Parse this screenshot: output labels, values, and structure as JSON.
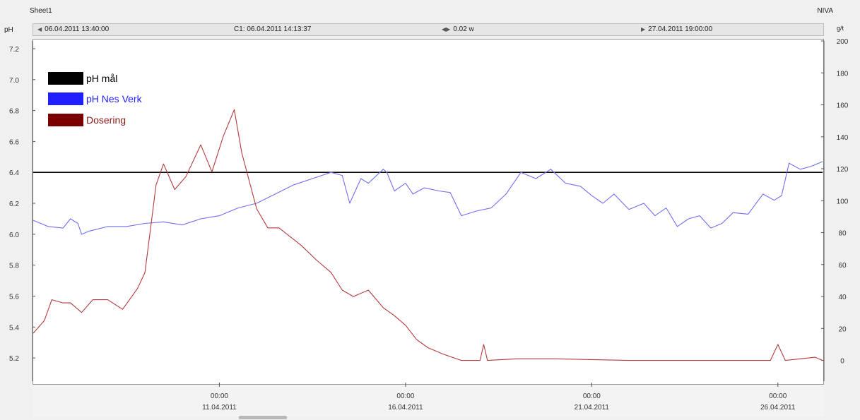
{
  "header": {
    "sheet_name": "Sheet1",
    "app_name": "NIVA",
    "left_unit": "pH",
    "right_unit": "g/t"
  },
  "toolbar": {
    "start_time": "06.04.2011 13:40:00",
    "cursor_label": "C1: 06.04.2011 14:13:37",
    "zoom_value": "0.02 w",
    "end_time": "27.04.2011 19:00:00"
  },
  "chart_data": {
    "type": "line",
    "title": "",
    "x_axis": {
      "ticks": [
        {
          "x": 5.0,
          "time": "00:00",
          "date": "11.04.2011"
        },
        {
          "x": 10.0,
          "time": "00:00",
          "date": "16.04.2011"
        },
        {
          "x": 15.0,
          "time": "00:00",
          "date": "21.04.2011"
        },
        {
          "x": 20.0,
          "time": "00:00",
          "date": "26.04.2011"
        }
      ],
      "range_days_from_start": [
        0,
        21.2
      ]
    },
    "y_left": {
      "label": "pH",
      "ticks": [
        "7.2",
        "7.0",
        "6.8",
        "6.6",
        "6.4",
        "6.2",
        "6.0",
        "5.8",
        "5.6",
        "5.4",
        "5.2"
      ],
      "range": [
        5.05,
        7.25
      ]
    },
    "y_right": {
      "label": "g/t",
      "ticks": [
        "200",
        "180",
        "160",
        "140",
        "120",
        "100",
        "80",
        "60",
        "40",
        "20",
        "0"
      ],
      "range": [
        -13,
        200
      ]
    },
    "legend_position": "top-left",
    "series": [
      {
        "name": "pH mål",
        "color": "#000000",
        "axis": "left",
        "points": [
          [
            0,
            6.4
          ],
          [
            21.2,
            6.4
          ]
        ]
      },
      {
        "name": "pH Nes Verk",
        "color": "#6f6ff0",
        "axis": "left",
        "points": [
          [
            0,
            6.09
          ],
          [
            0.4,
            6.05
          ],
          [
            0.8,
            6.04
          ],
          [
            1.0,
            6.1
          ],
          [
            1.2,
            6.07
          ],
          [
            1.3,
            6.0
          ],
          [
            1.5,
            6.02
          ],
          [
            2.0,
            6.05
          ],
          [
            2.5,
            6.05
          ],
          [
            3.0,
            6.07
          ],
          [
            3.5,
            6.08
          ],
          [
            4.0,
            6.06
          ],
          [
            4.5,
            6.1
          ],
          [
            5.0,
            6.12
          ],
          [
            5.5,
            6.17
          ],
          [
            6.0,
            6.2
          ],
          [
            6.5,
            6.26
          ],
          [
            7.0,
            6.32
          ],
          [
            7.5,
            6.36
          ],
          [
            8.0,
            6.4
          ],
          [
            8.3,
            6.38
          ],
          [
            8.5,
            6.2
          ],
          [
            8.8,
            6.36
          ],
          [
            9.0,
            6.33
          ],
          [
            9.4,
            6.42
          ],
          [
            9.5,
            6.4
          ],
          [
            9.7,
            6.28
          ],
          [
            10.0,
            6.33
          ],
          [
            10.2,
            6.26
          ],
          [
            10.5,
            6.3
          ],
          [
            10.9,
            6.28
          ],
          [
            11.2,
            6.27
          ],
          [
            11.5,
            6.12
          ],
          [
            11.9,
            6.15
          ],
          [
            12.3,
            6.17
          ],
          [
            12.7,
            6.26
          ],
          [
            13.1,
            6.4
          ],
          [
            13.5,
            6.36
          ],
          [
            13.9,
            6.42
          ],
          [
            14.3,
            6.33
          ],
          [
            14.7,
            6.31
          ],
          [
            15.0,
            6.25
          ],
          [
            15.3,
            6.2
          ],
          [
            15.6,
            6.26
          ],
          [
            16.0,
            6.16
          ],
          [
            16.4,
            6.2
          ],
          [
            16.7,
            6.12
          ],
          [
            17.0,
            6.17
          ],
          [
            17.3,
            6.05
          ],
          [
            17.6,
            6.1
          ],
          [
            17.9,
            6.12
          ],
          [
            18.2,
            6.04
          ],
          [
            18.5,
            6.07
          ],
          [
            18.8,
            6.14
          ],
          [
            19.2,
            6.13
          ],
          [
            19.6,
            6.26
          ],
          [
            19.9,
            6.22
          ],
          [
            20.1,
            6.25
          ],
          [
            20.3,
            6.46
          ],
          [
            20.6,
            6.42
          ],
          [
            20.9,
            6.44
          ],
          [
            21.2,
            6.47
          ]
        ]
      },
      {
        "name": "Dosering",
        "color": "#b23a3a",
        "axis": "right",
        "points": [
          [
            0,
            17
          ],
          [
            0.3,
            25
          ],
          [
            0.5,
            38
          ],
          [
            0.8,
            36
          ],
          [
            1.0,
            36
          ],
          [
            1.3,
            30
          ],
          [
            1.6,
            38
          ],
          [
            2.0,
            38
          ],
          [
            2.4,
            32
          ],
          [
            2.8,
            45
          ],
          [
            3.0,
            55
          ],
          [
            3.3,
            110
          ],
          [
            3.5,
            123
          ],
          [
            3.8,
            107
          ],
          [
            4.1,
            115
          ],
          [
            4.5,
            135
          ],
          [
            4.8,
            118
          ],
          [
            5.1,
            140
          ],
          [
            5.4,
            157
          ],
          [
            5.6,
            130
          ],
          [
            6.0,
            95
          ],
          [
            6.3,
            83
          ],
          [
            6.6,
            83
          ],
          [
            7.2,
            72
          ],
          [
            7.6,
            63
          ],
          [
            8.0,
            55
          ],
          [
            8.3,
            44
          ],
          [
            8.6,
            40
          ],
          [
            9.0,
            44
          ],
          [
            9.4,
            33
          ],
          [
            9.7,
            28
          ],
          [
            10.0,
            22
          ],
          [
            10.3,
            13
          ],
          [
            10.6,
            8
          ],
          [
            11.0,
            4
          ],
          [
            11.5,
            0
          ],
          [
            12.0,
            0
          ],
          [
            12.1,
            10
          ],
          [
            12.2,
            0
          ],
          [
            13.0,
            1
          ],
          [
            14.0,
            1
          ],
          [
            16.0,
            0
          ],
          [
            18.0,
            0
          ],
          [
            19.8,
            0
          ],
          [
            20.0,
            10
          ],
          [
            20.2,
            0
          ],
          [
            21.0,
            2
          ],
          [
            21.2,
            0
          ]
        ]
      }
    ]
  }
}
